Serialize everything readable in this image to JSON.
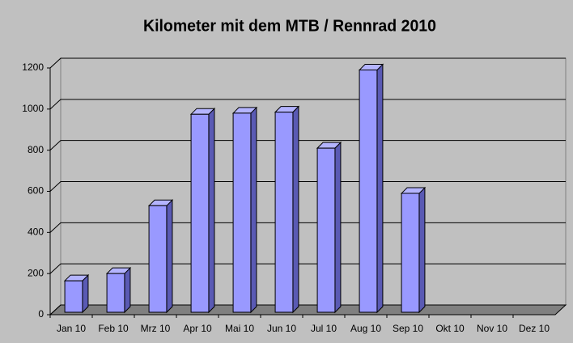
{
  "chart_data": {
    "type": "bar3d",
    "title": "Kilometer mit dem MTB / Rennrad 2010",
    "categories": [
      "Jan 10",
      "Feb 10",
      "Mrz 10",
      "Apr 10",
      "Mai 10",
      "Jun 10",
      "Jul 10",
      "Aug 10",
      "Sep 10",
      "Okt 10",
      "Nov 10",
      "Dez 10"
    ],
    "values": [
      165,
      200,
      530,
      975,
      980,
      985,
      810,
      1190,
      590,
      null,
      null,
      null
    ],
    "color": "#9999ff",
    "ylim": [
      0,
      1200
    ],
    "yticks": [
      0,
      200,
      400,
      600,
      800,
      1000,
      1200
    ],
    "grid": true
  }
}
